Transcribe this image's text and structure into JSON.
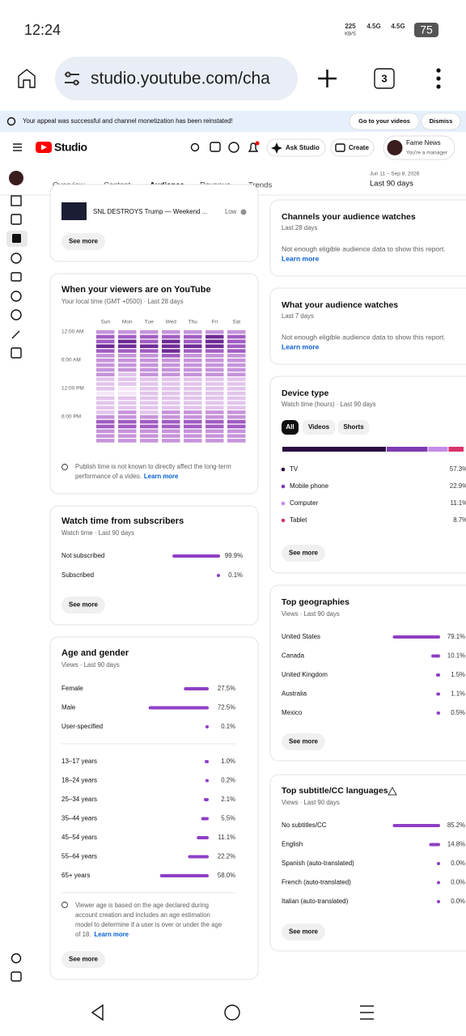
{
  "status_bar": {
    "time": "12:24",
    "speed": "225",
    "speed_unit": "KB/S",
    "network_1": "4.5G",
    "network_2": "4.5G",
    "battery": "75"
  },
  "browser": {
    "url": "studio.youtube.com/cha",
    "tab_count": "3"
  },
  "banner": {
    "message": "Your appeal was successful and channel monetization has been reinstated!",
    "go": "Go to your videos",
    "dismiss": "Dismiss"
  },
  "header": {
    "logo": "Studio",
    "ask": "Ask Studio",
    "create": "Create",
    "account_name": "Fame News",
    "account_role": "You're a manager"
  },
  "tabs": [
    "Overview",
    "Content",
    "Audience",
    "Revenue",
    "Trends"
  ],
  "date_range": {
    "dates": "Jun 11 – Sep 8, 2026",
    "period": "Last 90 days"
  },
  "top_content": {
    "video_title": "SNL DESTROYS Trump — Weekend ...",
    "level": "Low",
    "button": "See more"
  },
  "viewers_time": {
    "title": "When your viewers are on YouTube",
    "subtitle": "Your local time (GMT +0500) · Last 28 days",
    "days": [
      "Sun",
      "Mon",
      "Tue",
      "Wed",
      "Thu",
      "Fri",
      "Sat"
    ],
    "hour_labels": [
      "12:00 AM",
      "6:00 AM",
      "12:00 PM",
      "6:00 PM"
    ],
    "levels": [
      [
        2,
        3,
        3,
        4,
        3,
        2,
        2,
        2,
        2,
        2,
        1,
        1,
        1,
        0,
        1,
        1,
        1,
        1,
        2,
        3,
        3,
        2,
        2,
        2
      ],
      [
        2,
        3,
        4,
        4,
        3,
        2,
        2,
        2,
        2,
        1,
        1,
        1,
        0,
        0,
        1,
        1,
        1,
        2,
        2,
        3,
        3,
        2,
        2,
        2
      ],
      [
        2,
        3,
        3,
        4,
        3,
        2,
        2,
        2,
        2,
        2,
        1,
        1,
        1,
        1,
        1,
        1,
        1,
        1,
        2,
        3,
        3,
        2,
        2,
        2
      ],
      [
        2,
        3,
        4,
        4,
        4,
        3,
        2,
        2,
        2,
        2,
        1,
        1,
        1,
        1,
        1,
        1,
        1,
        2,
        2,
        3,
        3,
        2,
        2,
        2
      ],
      [
        2,
        3,
        3,
        4,
        3,
        2,
        2,
        2,
        2,
        2,
        1,
        1,
        1,
        1,
        1,
        1,
        1,
        2,
        2,
        3,
        3,
        2,
        2,
        2
      ],
      [
        2,
        4,
        4,
        4,
        3,
        2,
        2,
        2,
        2,
        2,
        1,
        1,
        1,
        1,
        1,
        1,
        1,
        2,
        2,
        3,
        3,
        2,
        2,
        2
      ],
      [
        2,
        3,
        3,
        3,
        3,
        2,
        2,
        2,
        2,
        2,
        1,
        1,
        1,
        1,
        1,
        1,
        1,
        2,
        2,
        3,
        3,
        2,
        2,
        2
      ]
    ],
    "note_lines": [
      "Publish time is not known to directly affect the long-term",
      "performance of a video."
    ],
    "link": "Learn more"
  },
  "subscribers": {
    "title": "Watch time from subscribers",
    "subtitle": "Watch time · Last 90 days",
    "rows": [
      {
        "label": "Not subscribed",
        "value": 99.9,
        "value_label": "99.9%"
      },
      {
        "label": "Subscribed",
        "value": 0.1,
        "value_label": "0.1%"
      }
    ],
    "button": "See more"
  },
  "age_gender": {
    "title": "Age and gender",
    "subtitle": "Views · Last 90 days",
    "gender": [
      {
        "label": "Female",
        "value": 27.5,
        "value_label": "27.5%"
      },
      {
        "label": "Male",
        "value": 72.5,
        "value_label": "72.5%"
      },
      {
        "label": "User-specified",
        "value": 0.1,
        "value_label": "0.1%"
      }
    ],
    "age": [
      {
        "label": "13–17 years",
        "value": 1.0,
        "value_label": "1.0%"
      },
      {
        "label": "18–24 years",
        "value": 0.2,
        "value_label": "0.2%"
      },
      {
        "label": "25–34 years",
        "value": 2.1,
        "value_label": "2.1%"
      },
      {
        "label": "35–44 years",
        "value": 5.5,
        "value_label": "5.5%"
      },
      {
        "label": "45–54 years",
        "value": 11.1,
        "value_label": "11.1%"
      },
      {
        "label": "55–64 years",
        "value": 22.2,
        "value_label": "22.2%"
      },
      {
        "label": "65+ years",
        "value": 58.0,
        "value_label": "58.0%"
      }
    ],
    "note_lines": [
      "Viewer age is based on the age declared during",
      "account creation and includes an age estimation",
      "model to determine if a user is over or under the age",
      "of 18."
    ],
    "link": "Learn more",
    "button": "See more"
  },
  "channels_watched": {
    "title": "Channels your audience watches",
    "subtitle": "Last 28 days",
    "message": "Not enough eligible audience data to show this report.",
    "link": "Learn more"
  },
  "content_watched": {
    "title": "What your audience watches",
    "subtitle": "Last 7 days",
    "message": "Not enough eligible audience data to show this report.",
    "link": "Learn more"
  },
  "device_type": {
    "title": "Device type",
    "subtitle": "Watch time (hours) · Last 90 days",
    "filters": [
      "All",
      "Videos",
      "Shorts"
    ],
    "rows": [
      {
        "label": "TV",
        "value": 57.3,
        "value_label": "57.3%",
        "color": "#2b0b3f"
      },
      {
        "label": "Mobile phone",
        "value": 22.9,
        "value_label": "22.9%",
        "color": "#7d3bb0"
      },
      {
        "label": "Computer",
        "value": 11.1,
        "value_label": "11.1%",
        "color": "#c58ae8"
      },
      {
        "label": "Tablet",
        "value": 8.7,
        "value_label": "8.7%",
        "color": "#d8336d"
      }
    ],
    "button": "See more"
  },
  "geographies": {
    "title": "Top geographies",
    "subtitle": "Views · Last 90 days",
    "rows": [
      {
        "label": "United States",
        "value": 79.1,
        "value_label": "79.1%"
      },
      {
        "label": "Canada",
        "value": 10.1,
        "value_label": "10.1%"
      },
      {
        "label": "United Kingdom",
        "value": 1.5,
        "value_label": "1.5%"
      },
      {
        "label": "Australia",
        "value": 1.1,
        "value_label": "1.1%"
      },
      {
        "label": "Mexico",
        "value": 0.5,
        "value_label": "0.5%"
      }
    ],
    "button": "See more"
  },
  "languages": {
    "title": "Top subtitle/CC languages",
    "subtitle": "Views · Last 90 days",
    "rows": [
      {
        "label": "No subtitles/CC",
        "value": 85.2,
        "value_label": "85.2%"
      },
      {
        "label": "English",
        "value": 14.8,
        "value_label": "14.8%"
      },
      {
        "label": "Spanish (auto-translated)",
        "value": 0.0,
        "value_label": "0.0%"
      },
      {
        "label": "French (auto-translated)",
        "value": 0.0,
        "value_label": "0.0%"
      },
      {
        "label": "Italian (auto-translated)",
        "value": 0.0,
        "value_label": "0.0%"
      }
    ],
    "button": "See more"
  }
}
